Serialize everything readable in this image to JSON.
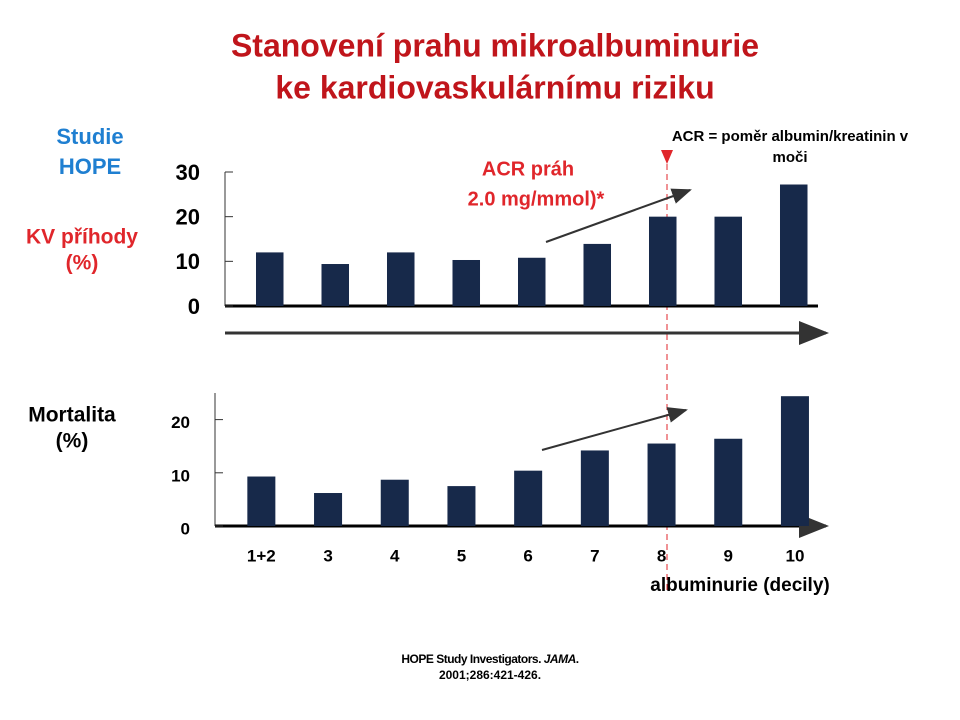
{
  "title": [
    "Stanovení prahu mikroalbuminurie",
    "ke kardiovaskulárnímu riziku"
  ],
  "note": [
    "ACR = poměr albumin/kreatinin v",
    "moči"
  ],
  "citation": {
    "before": "HOPE Study Investigators. ",
    "journal": "JAMA",
    "after": ".",
    "line2": "2001;286:421-426."
  },
  "chart_data": [
    {
      "type": "bar",
      "study_label": [
        "Studie",
        "HOPE"
      ],
      "ylabel": [
        "KV příhody",
        "(%)"
      ],
      "annotation": [
        "ACR práh",
        "2.0 mg/mmol)*"
      ],
      "values": [
        12,
        9.4,
        12,
        10.3,
        10.8,
        13.9,
        20,
        20,
        27.2
      ],
      "color": "#17294a",
      "ylim": [
        0,
        30
      ],
      "yticks": [
        0,
        10,
        20,
        30
      ]
    },
    {
      "type": "bar",
      "ylabel": [
        "Mortalita",
        "(%)"
      ],
      "xlabel": "albuminurie (decily)",
      "categories": [
        "1+2",
        "3",
        "4",
        "5",
        "6",
        "7",
        "8",
        "9",
        "10"
      ],
      "values": [
        9.3,
        6.2,
        8.7,
        7.5,
        10.4,
        14.2,
        15.5,
        16.4,
        24.4
      ],
      "color": "#17294a",
      "ylim": [
        0,
        25
      ],
      "yticks": [
        0,
        10,
        20
      ]
    }
  ]
}
